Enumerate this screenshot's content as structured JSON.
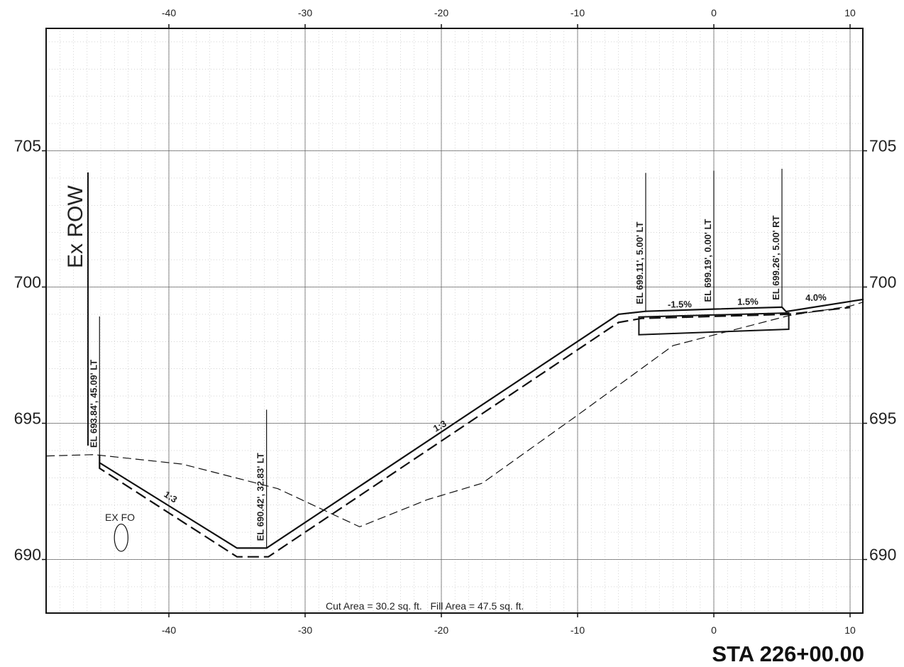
{
  "sheet": {
    "station_label": "STA 226+00.00",
    "area_note": "Cut Area = 30.2 sq. ft.   Fill Area = 47.5 sq. ft.",
    "row_label": "Ex ROW",
    "utility_label": "EX FO"
  },
  "axes": {
    "x_ticks": [
      -40,
      -30,
      -20,
      -10,
      0,
      10
    ],
    "y_ticks": [
      690,
      695,
      700,
      705
    ],
    "x_range": [
      -49,
      11
    ],
    "y_range": [
      688,
      710
    ],
    "grid": "major every 10 ft horizontal and 5 ft vertical, minor dotted every 1 ft"
  },
  "callouts": [
    {
      "text": "EL 693.84', 45.09' LT",
      "offset": -45.09,
      "elevation": 693.84
    },
    {
      "text": "EL 690.42', 32.83' LT",
      "offset": -32.83,
      "elevation": 690.42
    },
    {
      "text": "EL 699.11', 5.00' LT",
      "offset": -5.0,
      "elevation": 699.11
    },
    {
      "text": "EL 699.19', 0.00' LT",
      "offset": 0.0,
      "elevation": 699.19
    },
    {
      "text": "EL 699.26', 5.00' RT",
      "offset": 5.0,
      "elevation": 699.26
    }
  ],
  "slope_labels": [
    {
      "text": "1:3",
      "x": -40,
      "y": 692.2,
      "angle": 33
    },
    {
      "text": "1:3",
      "x": -20,
      "y": 694.8,
      "angle": -30
    },
    {
      "text": "-1.5%",
      "x": -2.5,
      "y": 699.25,
      "angle": -1
    },
    {
      "text": "1.5%",
      "x": 2.5,
      "y": 699.35,
      "angle": -1
    },
    {
      "text": "4.0%",
      "x": 7.5,
      "y": 699.5,
      "angle": -2
    }
  ],
  "profiles": {
    "proposed_finished": [
      [
        -45.09,
        693.84
      ],
      [
        -45.09,
        693.55
      ],
      [
        -35.0,
        690.42
      ],
      [
        -32.83,
        690.42
      ],
      [
        -7.0,
        699.0
      ],
      [
        -5.0,
        699.11
      ],
      [
        0.0,
        699.19
      ],
      [
        5.0,
        699.26
      ],
      [
        5.3,
        699.1
      ],
      [
        11.0,
        699.55
      ]
    ],
    "proposed_subgrade": [
      [
        -45.09,
        693.55
      ],
      [
        -45.09,
        693.35
      ],
      [
        -35.0,
        690.1
      ],
      [
        -32.7,
        690.1
      ],
      [
        -7.0,
        698.7
      ],
      [
        -5.3,
        698.85
      ],
      [
        5.5,
        699.0
      ],
      [
        10.0,
        699.25
      ]
    ],
    "existing_ground": [
      [
        -49,
        693.8
      ],
      [
        -45.5,
        693.85
      ],
      [
        -39.0,
        693.5
      ],
      [
        -32.0,
        692.6
      ],
      [
        -26.0,
        691.2
      ],
      [
        -21.0,
        692.2
      ],
      [
        -17.0,
        692.8
      ],
      [
        -10.0,
        695.3
      ],
      [
        -3.0,
        697.85
      ],
      [
        5.5,
        698.95
      ],
      [
        10.0,
        699.3
      ],
      [
        11.0,
        699.45
      ]
    ],
    "pavement_box": [
      [
        -5.5,
        698.9
      ],
      [
        -5.5,
        698.25
      ],
      [
        5.5,
        698.45
      ],
      [
        5.5,
        699.05
      ]
    ],
    "utility_ellipse": {
      "x": -43.5,
      "y": 690.8,
      "rx": 0.5,
      "ry": 0.5
    }
  }
}
